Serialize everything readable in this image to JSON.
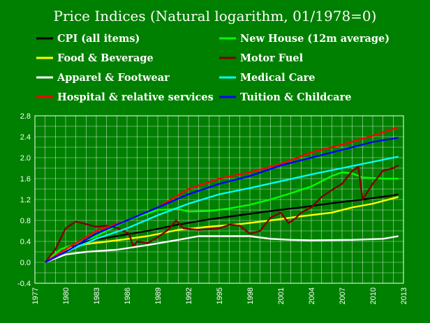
{
  "chart_data": {
    "type": "line",
    "title": "Price Indices (Natural logarithm, 01/1978=0)",
    "xlim": [
      1977,
      2013
    ],
    "ylim": [
      -0.4,
      2.8
    ],
    "x_ticks": [
      "1977",
      "1980",
      "1983",
      "1986",
      "1989",
      "1992",
      "1995",
      "1998",
      "2001",
      "2004",
      "2007",
      "2010",
      "2013"
    ],
    "y_ticks": [
      "-0.4",
      "0.0",
      "0.4",
      "0.8",
      "1.2",
      "1.6",
      "2.0",
      "2.4",
      "2.8"
    ],
    "grid": true,
    "legend_position": "top",
    "background": "#008000",
    "series": [
      {
        "name": "CPI (all items)",
        "color": "#000000",
        "points": [
          [
            1978,
            0
          ],
          [
            1980,
            0.25
          ],
          [
            1982,
            0.4
          ],
          [
            1985,
            0.5
          ],
          [
            1988,
            0.6
          ],
          [
            1991,
            0.72
          ],
          [
            1994,
            0.82
          ],
          [
            1997,
            0.9
          ],
          [
            2000,
            0.98
          ],
          [
            2003,
            1.05
          ],
          [
            2006,
            1.13
          ],
          [
            2009,
            1.2
          ],
          [
            2012,
            1.28
          ],
          [
            2012.5,
            1.3
          ]
        ]
      },
      {
        "name": "New House (12m average)",
        "color": "#00ff00",
        "points": [
          [
            1978,
            0
          ],
          [
            1979.5,
            0.25
          ],
          [
            1981,
            0.35
          ],
          [
            1983,
            0.5
          ],
          [
            1986,
            0.8
          ],
          [
            1989,
            1.0
          ],
          [
            1991,
            1.02
          ],
          [
            1992,
            0.97
          ],
          [
            1994,
            0.98
          ],
          [
            1996,
            1.03
          ],
          [
            1998,
            1.1
          ],
          [
            2000,
            1.2
          ],
          [
            2002,
            1.32
          ],
          [
            2004,
            1.45
          ],
          [
            2006,
            1.65
          ],
          [
            2007,
            1.72
          ],
          [
            2008,
            1.7
          ],
          [
            2009,
            1.62
          ],
          [
            2011,
            1.6
          ],
          [
            2012.5,
            1.6
          ]
        ]
      },
      {
        "name": "Food & Beverage",
        "color": "#ffff00",
        "points": [
          [
            1978,
            0
          ],
          [
            1980,
            0.25
          ],
          [
            1982,
            0.35
          ],
          [
            1985,
            0.42
          ],
          [
            1988,
            0.5
          ],
          [
            1991,
            0.62
          ],
          [
            1994,
            0.68
          ],
          [
            1997,
            0.73
          ],
          [
            2000,
            0.8
          ],
          [
            2003,
            0.88
          ],
          [
            2006,
            0.95
          ],
          [
            2008,
            1.05
          ],
          [
            2010,
            1.12
          ],
          [
            2012.5,
            1.25
          ]
        ]
      },
      {
        "name": "Motor Fuel",
        "color": "#800000",
        "points": [
          [
            1978,
            0
          ],
          [
            1979,
            0.25
          ],
          [
            1980,
            0.65
          ],
          [
            1981,
            0.78
          ],
          [
            1982,
            0.73
          ],
          [
            1983,
            0.68
          ],
          [
            1984,
            0.7
          ],
          [
            1985,
            0.66
          ],
          [
            1986.2,
            0.55
          ],
          [
            1986.6,
            0.3
          ],
          [
            1987,
            0.4
          ],
          [
            1988,
            0.37
          ],
          [
            1989,
            0.48
          ],
          [
            1990,
            0.62
          ],
          [
            1990.8,
            0.8
          ],
          [
            1991.5,
            0.65
          ],
          [
            1993,
            0.62
          ],
          [
            1995,
            0.65
          ],
          [
            1996,
            0.72
          ],
          [
            1997,
            0.7
          ],
          [
            1998,
            0.55
          ],
          [
            1999,
            0.6
          ],
          [
            2000,
            0.85
          ],
          [
            2001,
            0.95
          ],
          [
            2001.8,
            0.75
          ],
          [
            2002.5,
            0.85
          ],
          [
            2003,
            0.95
          ],
          [
            2004,
            1.05
          ],
          [
            2005,
            1.25
          ],
          [
            2006,
            1.38
          ],
          [
            2007,
            1.5
          ],
          [
            2008,
            1.75
          ],
          [
            2008.6,
            1.82
          ],
          [
            2009,
            1.2
          ],
          [
            2009.5,
            1.35
          ],
          [
            2010,
            1.5
          ],
          [
            2011,
            1.75
          ],
          [
            2012,
            1.8
          ],
          [
            2012.5,
            1.85
          ]
        ]
      },
      {
        "name": "Apparel & Footwear",
        "color": "#ffffff",
        "points": [
          [
            1978,
            0
          ],
          [
            1980,
            0.15
          ],
          [
            1982,
            0.2
          ],
          [
            1985,
            0.24
          ],
          [
            1988,
            0.33
          ],
          [
            1991,
            0.43
          ],
          [
            1993,
            0.5
          ],
          [
            1995,
            0.5
          ],
          [
            1998,
            0.5
          ],
          [
            2000,
            0.45
          ],
          [
            2002,
            0.43
          ],
          [
            2004,
            0.42
          ],
          [
            2008,
            0.43
          ],
          [
            2011,
            0.45
          ],
          [
            2012.5,
            0.5
          ]
        ]
      },
      {
        "name": "Medical Care",
        "color": "#00ffff",
        "points": [
          [
            1978,
            0
          ],
          [
            1980,
            0.2
          ],
          [
            1983,
            0.45
          ],
          [
            1986,
            0.65
          ],
          [
            1989,
            0.9
          ],
          [
            1992,
            1.12
          ],
          [
            1995,
            1.3
          ],
          [
            1998,
            1.42
          ],
          [
            2001,
            1.55
          ],
          [
            2004,
            1.68
          ],
          [
            2007,
            1.8
          ],
          [
            2010,
            1.92
          ],
          [
            2012.5,
            2.02
          ]
        ]
      },
      {
        "name": "Hospital & relative services",
        "color": "#ff0000",
        "points": [
          [
            1978,
            0
          ],
          [
            1980,
            0.25
          ],
          [
            1983,
            0.6
          ],
          [
            1986,
            0.8
          ],
          [
            1989,
            1.05
          ],
          [
            1992,
            1.4
          ],
          [
            1995,
            1.6
          ],
          [
            1998,
            1.72
          ],
          [
            2001,
            1.88
          ],
          [
            2004,
            2.1
          ],
          [
            2007,
            2.25
          ],
          [
            2010,
            2.42
          ],
          [
            2012.5,
            2.58
          ]
        ]
      },
      {
        "name": "Tuition & Childcare",
        "color": "#0000ff",
        "points": [
          [
            1978,
            0
          ],
          [
            1980,
            0.2
          ],
          [
            1983,
            0.55
          ],
          [
            1986,
            0.8
          ],
          [
            1989,
            1.05
          ],
          [
            1992,
            1.3
          ],
          [
            1995,
            1.5
          ],
          [
            1998,
            1.65
          ],
          [
            2001,
            1.85
          ],
          [
            2004,
            2.0
          ],
          [
            2007,
            2.15
          ],
          [
            2010,
            2.3
          ],
          [
            2012.5,
            2.38
          ]
        ]
      }
    ]
  },
  "legend": [
    {
      "label": "CPI (all items)",
      "color": "#000000"
    },
    {
      "label": "New House (12m average)",
      "color": "#00ff00"
    },
    {
      "label": "Food & Beverage",
      "color": "#ffff00"
    },
    {
      "label": "Motor Fuel",
      "color": "#800000"
    },
    {
      "label": "Apparel & Footwear",
      "color": "#ffffff"
    },
    {
      "label": "Medical Care",
      "color": "#00ffff"
    },
    {
      "label": "Hospital & relative services",
      "color": "#ff0000"
    },
    {
      "label": "Tuition & Childcare",
      "color": "#0000ff"
    }
  ]
}
